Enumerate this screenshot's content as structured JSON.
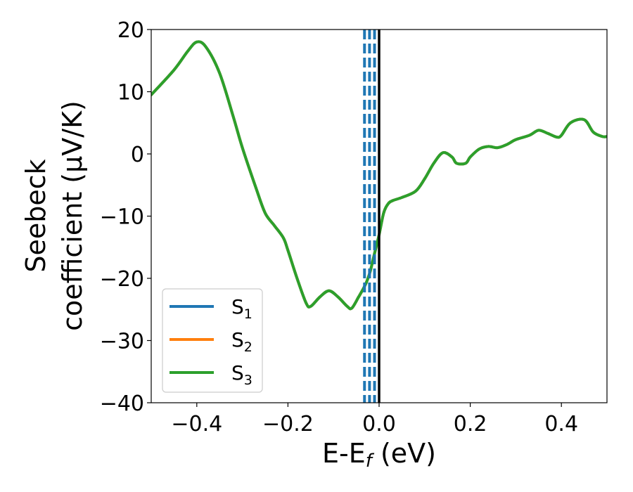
{
  "chart_data": {
    "type": "line",
    "xlabel": {
      "main": "E-E",
      "sub": "f",
      "tail": " (eV)"
    },
    "ylabel": {
      "line1": "Seebeck",
      "line2": "coefficient  (μV/K)"
    },
    "xlim": [
      -0.5,
      0.5
    ],
    "ylim": [
      -40,
      20
    ],
    "xticks": [
      -0.4,
      -0.2,
      0.0,
      0.2,
      0.4
    ],
    "xtick_labels": [
      "−0.4",
      "−0.2",
      "0.0",
      "0.2",
      "0.4"
    ],
    "yticks": [
      20,
      10,
      0,
      -10,
      -20,
      -30,
      -40
    ],
    "ytick_labels": [
      "20",
      "10",
      "0",
      "−10",
      "−20",
      "−30",
      "−40"
    ],
    "grid": false,
    "legend_position": "lower-left",
    "series": [
      {
        "name": "S",
        "sub": "1",
        "color": "#1f77b4",
        "x": [
          -0.5,
          -0.45,
          -0.42,
          -0.4,
          -0.38,
          -0.35,
          -0.32,
          -0.3,
          -0.27,
          -0.25,
          -0.23,
          -0.21,
          -0.2,
          -0.18,
          -0.16,
          -0.15,
          -0.13,
          -0.11,
          -0.09,
          -0.07,
          -0.06,
          -0.045,
          -0.03,
          -0.02,
          -0.01,
          0.0,
          0.01,
          0.02,
          0.03,
          0.05,
          0.08,
          0.1,
          0.12,
          0.14,
          0.16,
          0.17,
          0.19,
          0.2,
          0.22,
          0.24,
          0.26,
          0.28,
          0.3,
          0.33,
          0.35,
          0.37,
          0.39,
          0.4,
          0.42,
          0.45,
          0.47,
          0.49,
          0.5
        ],
        "y": [
          9.5,
          13.5,
          16.5,
          18.0,
          17.2,
          13.0,
          6.0,
          1.0,
          -5.5,
          -9.5,
          -11.5,
          -13.5,
          -15.5,
          -20.0,
          -24.0,
          -24.5,
          -23.0,
          -22.0,
          -23.0,
          -24.5,
          -24.8,
          -23.0,
          -21.0,
          -19.0,
          -16.0,
          -13.0,
          -9.5,
          -8.0,
          -7.5,
          -7.0,
          -6.0,
          -4.0,
          -1.5,
          0.2,
          -0.5,
          -1.5,
          -1.5,
          -0.5,
          0.8,
          1.2,
          1.0,
          1.5,
          2.3,
          3.0,
          3.8,
          3.3,
          2.7,
          3.0,
          5.0,
          5.5,
          3.5,
          2.8,
          2.8
        ]
      },
      {
        "name": "S",
        "sub": "2",
        "color": "#ff7f0e",
        "x": [
          -0.5,
          -0.45,
          -0.42,
          -0.4,
          -0.38,
          -0.35,
          -0.32,
          -0.3,
          -0.27,
          -0.25,
          -0.23,
          -0.21,
          -0.2,
          -0.18,
          -0.16,
          -0.15,
          -0.13,
          -0.11,
          -0.09,
          -0.07,
          -0.06,
          -0.045,
          -0.03,
          -0.02,
          -0.01,
          0.0,
          0.01,
          0.02,
          0.03,
          0.05,
          0.08,
          0.1,
          0.12,
          0.14,
          0.16,
          0.17,
          0.19,
          0.2,
          0.22,
          0.24,
          0.26,
          0.28,
          0.3,
          0.33,
          0.35,
          0.37,
          0.39,
          0.4,
          0.42,
          0.45,
          0.47,
          0.49,
          0.5
        ],
        "y": [
          9.5,
          13.5,
          16.5,
          18.0,
          17.2,
          13.0,
          6.0,
          1.0,
          -5.5,
          -9.5,
          -11.5,
          -13.5,
          -15.5,
          -20.0,
          -24.0,
          -24.5,
          -23.0,
          -22.0,
          -23.0,
          -24.5,
          -24.8,
          -23.0,
          -21.0,
          -19.0,
          -16.0,
          -13.0,
          -9.5,
          -8.0,
          -7.5,
          -7.0,
          -6.0,
          -4.0,
          -1.5,
          0.2,
          -0.5,
          -1.5,
          -1.5,
          -0.5,
          0.8,
          1.2,
          1.0,
          1.5,
          2.3,
          3.0,
          3.8,
          3.3,
          2.7,
          3.0,
          5.0,
          5.5,
          3.5,
          2.8,
          2.8
        ]
      },
      {
        "name": "S",
        "sub": "3",
        "color": "#2ca02c",
        "x": [
          -0.5,
          -0.45,
          -0.42,
          -0.4,
          -0.38,
          -0.35,
          -0.32,
          -0.3,
          -0.27,
          -0.25,
          -0.23,
          -0.21,
          -0.2,
          -0.18,
          -0.16,
          -0.15,
          -0.13,
          -0.11,
          -0.09,
          -0.07,
          -0.06,
          -0.045,
          -0.03,
          -0.02,
          -0.01,
          0.0,
          0.01,
          0.02,
          0.03,
          0.05,
          0.08,
          0.1,
          0.12,
          0.14,
          0.16,
          0.17,
          0.19,
          0.2,
          0.22,
          0.24,
          0.26,
          0.28,
          0.3,
          0.33,
          0.35,
          0.37,
          0.39,
          0.4,
          0.42,
          0.45,
          0.47,
          0.49,
          0.5
        ],
        "y": [
          9.5,
          13.5,
          16.5,
          18.0,
          17.2,
          13.0,
          6.0,
          1.0,
          -5.5,
          -9.5,
          -11.5,
          -13.5,
          -15.5,
          -20.0,
          -24.0,
          -24.5,
          -23.0,
          -22.0,
          -23.0,
          -24.5,
          -24.8,
          -23.0,
          -21.0,
          -19.0,
          -16.0,
          -13.0,
          -9.5,
          -8.0,
          -7.5,
          -7.0,
          -6.0,
          -4.0,
          -1.5,
          0.2,
          -0.5,
          -1.5,
          -1.5,
          -0.5,
          0.8,
          1.2,
          1.0,
          1.5,
          2.3,
          3.0,
          3.8,
          3.3,
          2.7,
          3.0,
          5.0,
          5.5,
          3.5,
          2.8,
          2.8
        ]
      }
    ],
    "vlines": [
      {
        "x": -0.032,
        "style": "dashed",
        "color": "#1f77b4"
      },
      {
        "x": -0.021,
        "style": "dashed",
        "color": "#1f77b4"
      },
      {
        "x": -0.01,
        "style": "dashed",
        "color": "#1f77b4"
      },
      {
        "x": 0.0,
        "style": "solid",
        "color": "#000000"
      }
    ]
  }
}
